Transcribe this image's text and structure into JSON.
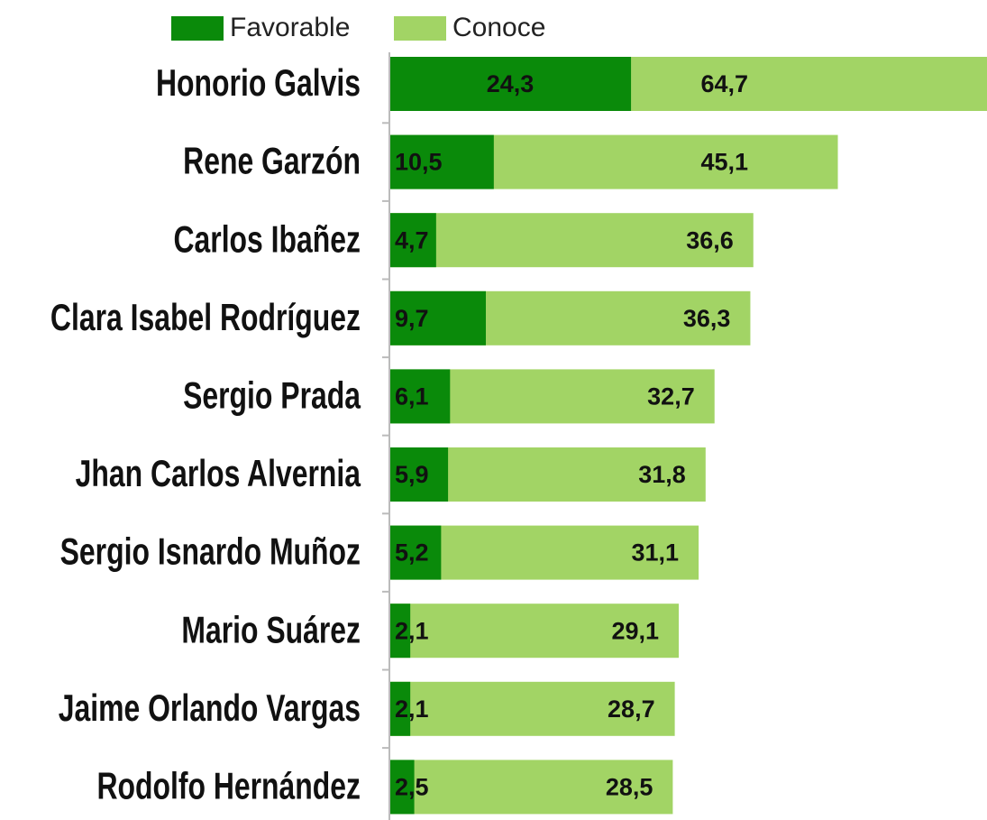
{
  "chart_data": {
    "type": "bar",
    "orientation": "horizontal",
    "overlap": true,
    "categories": [
      "Honorio Galvis",
      "Rene Garzón",
      "Carlos Ibañez",
      "Clara Isabel Rodríguez",
      "Sergio Prada",
      "Jhan Carlos Alvernia",
      "Sergio Isnardo Muñoz",
      "Mario Suárez",
      "Jaime Orlando Vargas",
      "Rodolfo Hernández"
    ],
    "series": [
      {
        "name": "Conoce",
        "color": "#a2d465",
        "values": [
          64.7,
          45.1,
          36.6,
          36.3,
          32.7,
          31.8,
          31.1,
          29.1,
          28.7,
          28.5
        ],
        "value_labels": [
          "64,7",
          "45,1",
          "36,6",
          "36,3",
          "32,7",
          "31,8",
          "31,1",
          "29,1",
          "28,7",
          "28,5"
        ]
      },
      {
        "name": "Favorable",
        "color": "#0a8a0a",
        "values": [
          24.3,
          10.5,
          4.7,
          9.7,
          6.1,
          5.9,
          5.2,
          2.1,
          2.1,
          2.5
        ],
        "value_labels": [
          "24,3",
          "10,5",
          "4,7",
          "9,7",
          "6,1",
          "5,9",
          "5,2",
          "2,1",
          "2,1",
          "2,5"
        ]
      }
    ],
    "legend_order": [
      1,
      0
    ],
    "xlim": [
      0,
      60.1
    ]
  }
}
